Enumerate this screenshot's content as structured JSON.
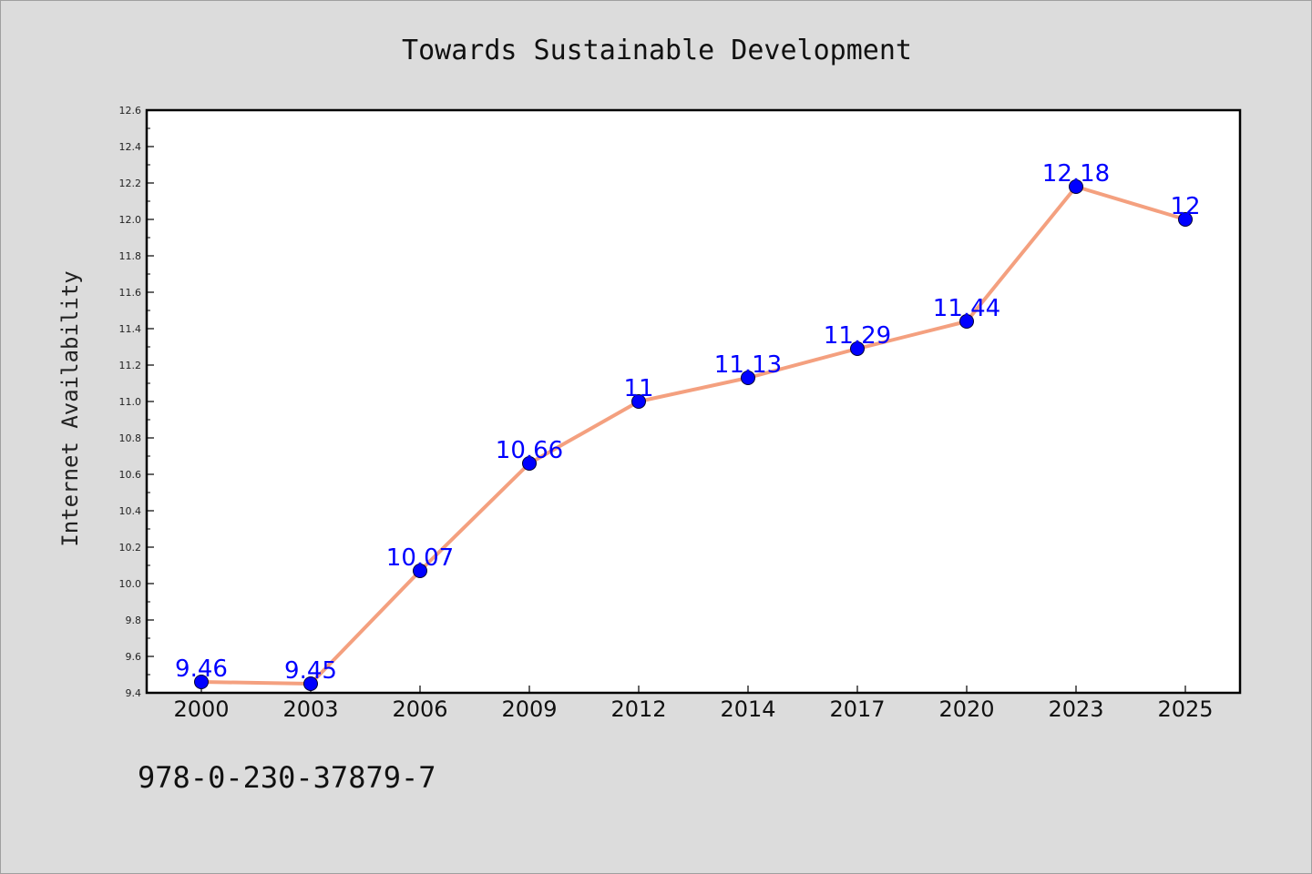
{
  "chart_data": {
    "type": "line",
    "title": "Towards Sustainable Development",
    "xlabel": "",
    "ylabel": "Internet Availability",
    "categories": [
      "2000",
      "2003",
      "2006",
      "2009",
      "2012",
      "2014",
      "2017",
      "2020",
      "2023",
      "2025"
    ],
    "series": [
      {
        "values": [
          9.46,
          9.45,
          10.07,
          10.66,
          11,
          11.13,
          11.29,
          11.44,
          12.18,
          12
        ],
        "data_labels": [
          "9.46",
          "9.45",
          "10.07",
          "10.66",
          "11",
          "11.13",
          "11.29",
          "11.44",
          "12.18",
          "12"
        ],
        "line_color": "#f4a07f",
        "marker_color": "#0000ff"
      }
    ],
    "ylim": [
      9.4,
      12.6
    ],
    "y_ticks": [
      "9.4",
      "9.6",
      "9.8",
      "10.0",
      "10.2",
      "10.4",
      "10.6",
      "10.8",
      "11.0",
      "11.2",
      "11.4",
      "11.6",
      "11.8",
      "12.0",
      "12.2",
      "12.4",
      "12.6"
    ],
    "grid": false,
    "legend": "none"
  },
  "footer": {
    "isbn": "978-0-230-37879-7"
  },
  "colors": {
    "background": "#dcdcdc",
    "plot_background": "#ffffff",
    "axis": "#000000"
  }
}
